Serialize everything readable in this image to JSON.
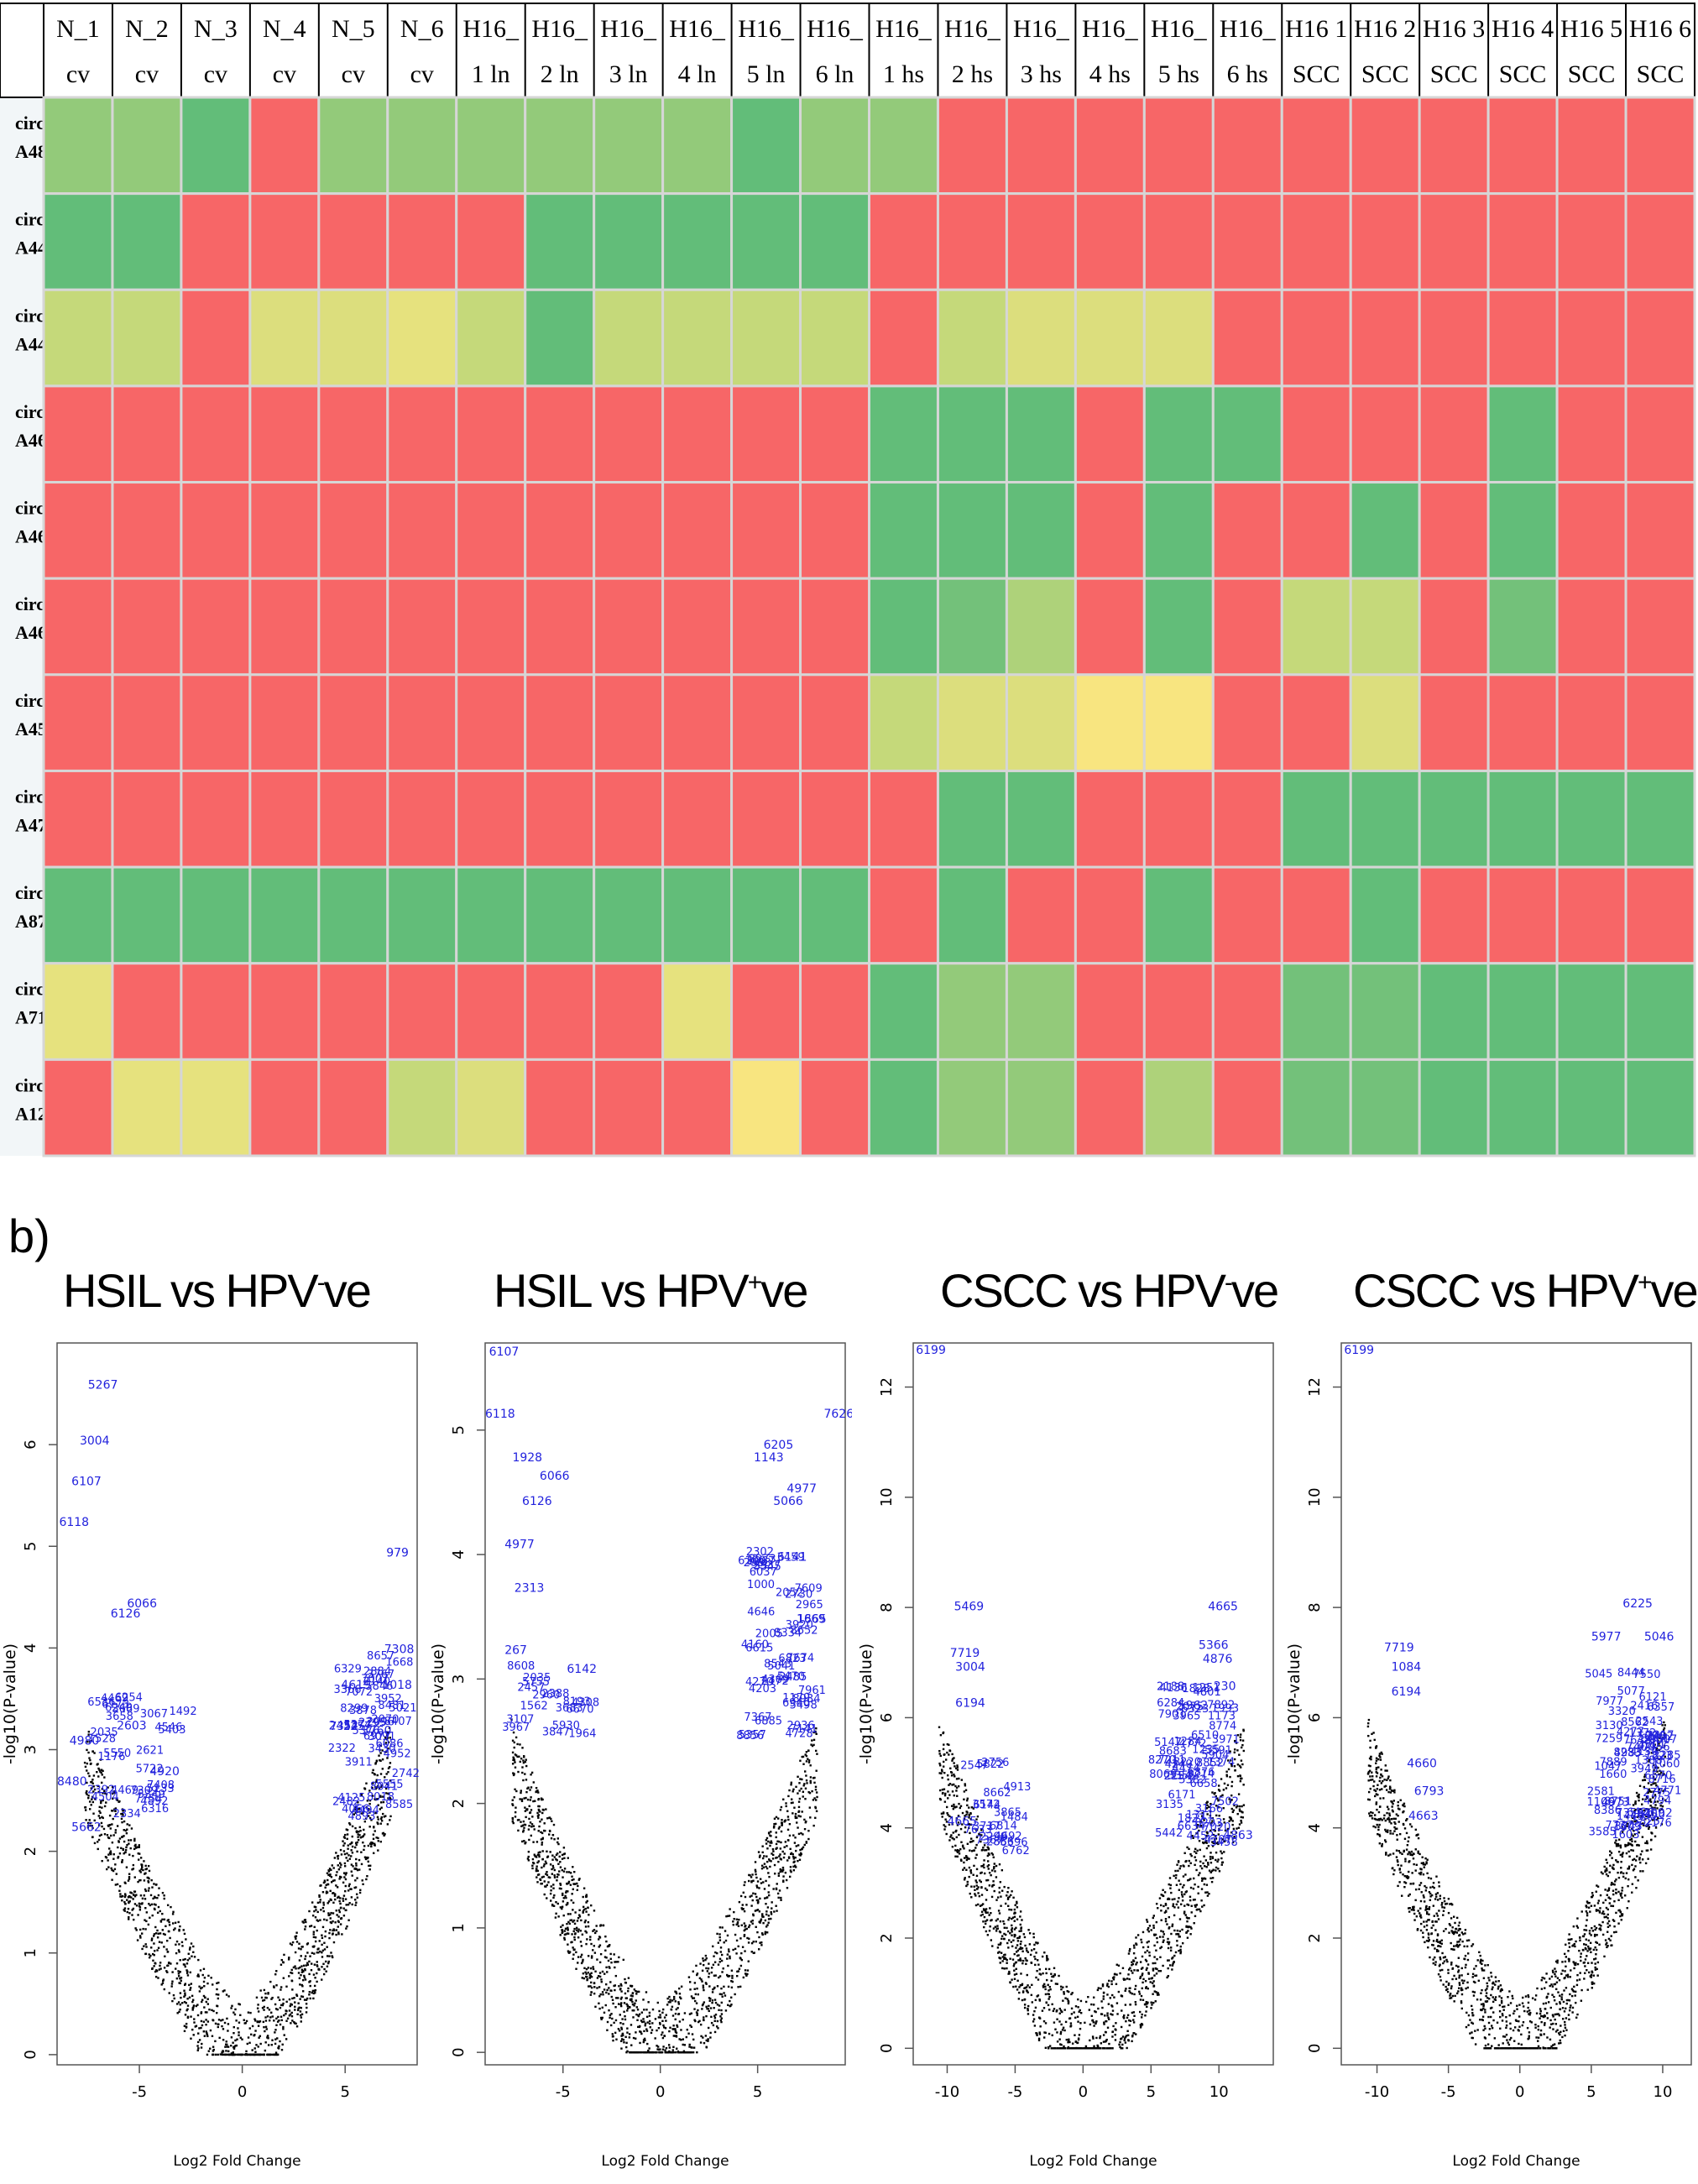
{
  "panel_a_label": "a)",
  "panel_b_label": "b)",
  "chart_data": [
    {
      "type": "heatmap",
      "columns": [
        [
          "N_1",
          "cv"
        ],
        [
          "N_2",
          "cv"
        ],
        [
          "N_3",
          "cv"
        ],
        [
          "N_4",
          "cv"
        ],
        [
          "N_5",
          "cv"
        ],
        [
          "N_6",
          "cv"
        ],
        [
          "H16_",
          "1 ln"
        ],
        [
          "H16_",
          "2 ln"
        ],
        [
          "H16_",
          "3 ln"
        ],
        [
          "H16_",
          "4 ln"
        ],
        [
          "H16_",
          "5 ln"
        ],
        [
          "H16_",
          "6 ln"
        ],
        [
          "H16_",
          "1 hs"
        ],
        [
          "H16_",
          "2 hs"
        ],
        [
          "H16_",
          "3 hs"
        ],
        [
          "H16_",
          "4 hs"
        ],
        [
          "H16_",
          "5 hs"
        ],
        [
          "H16_",
          "6 hs"
        ],
        [
          "H16 1",
          "SCC"
        ],
        [
          "H16 2",
          "SCC"
        ],
        [
          "H16 3",
          "SCC"
        ],
        [
          "H16 4",
          "SCC"
        ],
        [
          "H16 5",
          "SCC"
        ],
        [
          "H16 6",
          "SCC"
        ]
      ],
      "rows": [
        [
          "circRN",
          "A4806"
        ],
        [
          "circRN",
          "A4400"
        ],
        [
          "circRN",
          "A4402"
        ],
        [
          "circRN",
          "A46029"
        ],
        [
          "circRN",
          "A46229"
        ],
        [
          "circRN",
          "A46342"
        ],
        [
          "circRN",
          "A45436"
        ],
        [
          "circRN",
          "A47461"
        ],
        [
          "circRN",
          "A873"
        ],
        [
          "circRN",
          "A7194"
        ],
        [
          "circRN",
          "A12542"
        ]
      ],
      "palette": {
        "R": "#f76667",
        "G": "#62bd79",
        "g": "#73c17a",
        "L": "#93ca7a",
        "M": "#aed27a",
        "V": "#c5d97a",
        "Y": "#dcde7d",
        "P": "#e6e27e",
        "W": "#f8e580"
      },
      "cells": [
        "LLGRLLLLLLGLLRRRRRRRRRRR",
        "GGRRRRRGGGGGRRRRRRRRRRRR",
        "VVRYYPVGVVVVRVYYYRRRRRRR",
        "RRRRRRRRRRRRGGGRGGRRRGRR",
        "RRRRRRRRRRRRGGGRGRRGRGRR",
        "RRRRRRRRRRRRGgMRGRVVRgRR",
        "RRRRRRRRRRRRVYYWWRRYRRRR",
        "RRRRRRRRRRRRRGGRRRGGGGGG",
        "GGGGGGGGGGGGRGRRGRRGRRRR",
        "PRRRRRRRRPRRGLLRRRggGGGG",
        "RPPRRVYRRRWRGLLRMRggGGGG"
      ]
    },
    {
      "type": "scatter",
      "title_main": "HSIL vs HPV",
      "title_sup": "-",
      "title_tail": "ve",
      "xlabel": "Log2 Fold Change",
      "ylabel": "-log10(P-value)",
      "xlim": [
        -9,
        8.5
      ],
      "ylim": [
        -0.1,
        7
      ],
      "xticks": [
        -5,
        0,
        5
      ],
      "yticks": [
        0,
        1,
        2,
        3,
        4,
        5,
        6
      ],
      "point_color": "#000000",
      "label_color": "#2222dd",
      "labels": [
        {
          "t": "5267",
          "x": -7.5,
          "y": 6.55
        },
        {
          "t": "3004",
          "x": -7.9,
          "y": 6.0
        },
        {
          "t": "6107",
          "x": -8.3,
          "y": 5.6
        },
        {
          "t": "6118",
          "x": -8.9,
          "y": 5.2
        },
        {
          "t": "6066",
          "x": -5.6,
          "y": 4.4
        },
        {
          "t": "6126",
          "x": -6.4,
          "y": 4.3
        },
        {
          "t": "979",
          "x": 7.0,
          "y": 4.9
        },
        {
          "t": "2603",
          "x": -6.1,
          "y": 3.2
        },
        {
          "t": "4980",
          "x": -8.4,
          "y": 3.05
        },
        {
          "t": "8480",
          "x": -9.0,
          "y": 2.65
        },
        {
          "t": "5662",
          "x": -8.3,
          "y": 2.2
        },
        {
          "t": "4920",
          "x": -4.5,
          "y": 2.75
        },
        {
          "t": "2452",
          "x": 4.2,
          "y": 3.2
        },
        {
          "t": "1018",
          "x": 6.8,
          "y": 3.6
        },
        {
          "t": "7308",
          "x": 6.9,
          "y": 3.95
        },
        {
          "t": "4619",
          "x": 4.8,
          "y": 3.6
        },
        {
          "t": "3760",
          "x": 5.8,
          "y": 3.15
        }
      ],
      "label_clusters": [
        {
          "x": [
            -7.8,
            -3.5
          ],
          "y": [
            2.3,
            3.5
          ],
          "n": 28
        },
        {
          "x": [
            4.0,
            7.3
          ],
          "y": [
            2.3,
            4.0
          ],
          "n": 40
        }
      ]
    },
    {
      "type": "scatter",
      "title_main": "HSIL vs HPV",
      "title_sup": "+",
      "title_tail": "ve",
      "xlabel": "Log2 Fold Change",
      "ylabel": "-log10(P-value)",
      "xlim": [
        -9,
        9.5
      ],
      "ylim": [
        -0.1,
        5.7
      ],
      "xticks": [
        -5,
        0,
        5
      ],
      "yticks": [
        0,
        1,
        2,
        3,
        4,
        5
      ],
      "point_color": "#000000",
      "label_color": "#2222dd",
      "labels": [
        {
          "t": "6107",
          "x": -8.8,
          "y": 5.6
        },
        {
          "t": "6118",
          "x": -9.0,
          "y": 5.1
        },
        {
          "t": "7626",
          "x": 8.4,
          "y": 5.1
        },
        {
          "t": "1928",
          "x": -7.6,
          "y": 4.75
        },
        {
          "t": "6066",
          "x": -6.2,
          "y": 4.6
        },
        {
          "t": "6126",
          "x": -7.1,
          "y": 4.4
        },
        {
          "t": "4977",
          "x": -8.0,
          "y": 4.05
        },
        {
          "t": "2313",
          "x": -7.5,
          "y": 3.7
        },
        {
          "t": "6205",
          "x": 5.3,
          "y": 4.85
        },
        {
          "t": "1143",
          "x": 4.8,
          "y": 4.75
        },
        {
          "t": "5066",
          "x": 5.8,
          "y": 4.4
        },
        {
          "t": "4977",
          "x": 6.5,
          "y": 4.5
        },
        {
          "t": "6142",
          "x": -4.8,
          "y": 3.05
        },
        {
          "t": "6141",
          "x": 6.0,
          "y": 3.95
        },
        {
          "t": "1665",
          "x": 7.0,
          "y": 3.45
        },
        {
          "t": "267",
          "x": -8.0,
          "y": 3.2
        }
      ],
      "label_clusters": [
        {
          "x": [
            -8.2,
            -4.4
          ],
          "y": [
            2.4,
            3.1
          ],
          "n": 16
        },
        {
          "x": [
            3.9,
            7.2
          ],
          "y": [
            2.4,
            4.0
          ],
          "n": 44
        }
      ]
    },
    {
      "type": "scatter",
      "title_main": "CSCC vs HPV",
      "title_sup": "-",
      "title_tail": "ve",
      "xlabel": "Log2 Fold Change",
      "ylabel": "-log10(P-value)",
      "xlim": [
        -12.5,
        14
      ],
      "ylim": [
        -0.3,
        12.8
      ],
      "xticks": [
        -10,
        -5,
        0,
        5,
        10
      ],
      "yticks": [
        0,
        2,
        4,
        6,
        8,
        10,
        12
      ],
      "point_color": "#000000",
      "label_color": "#2222dd",
      "labels": [
        {
          "t": "6199",
          "x": -12.3,
          "y": 12.6
        },
        {
          "t": "5469",
          "x": -9.5,
          "y": 7.95
        },
        {
          "t": "7719",
          "x": -9.8,
          "y": 7.1
        },
        {
          "t": "3004",
          "x": -9.4,
          "y": 6.85
        },
        {
          "t": "6194",
          "x": -9.4,
          "y": 6.2
        },
        {
          "t": "4665",
          "x": -10.0,
          "y": 4.05
        },
        {
          "t": "4665",
          "x": 9.2,
          "y": 7.95
        },
        {
          "t": "5366",
          "x": 8.5,
          "y": 7.25
        },
        {
          "t": "4876",
          "x": 8.8,
          "y": 7.0
        },
        {
          "t": "230",
          "x": 9.6,
          "y": 6.5
        },
        {
          "t": "5962",
          "x": 7.0,
          "y": 6.15
        },
        {
          "t": "4863",
          "x": 10.3,
          "y": 3.8
        }
      ],
      "label_clusters": [
        {
          "x": [
            -9.2,
            -5.5
          ],
          "y": [
            3.4,
            5.2
          ],
          "n": 18
        },
        {
          "x": [
            4.6,
            9.6
          ],
          "y": [
            3.6,
            6.6
          ],
          "n": 50
        }
      ]
    },
    {
      "type": "scatter",
      "title_main": "CSCC vs HPV",
      "title_sup": "+",
      "title_tail": "ve",
      "xlabel": "Log2 Fold Change",
      "ylabel": "-log10(P-value)",
      "xlim": [
        -12.5,
        12
      ],
      "ylim": [
        -0.3,
        12.8
      ],
      "xticks": [
        -10,
        -5,
        0,
        5,
        10
      ],
      "yticks": [
        0,
        2,
        4,
        6,
        8,
        10,
        12
      ],
      "point_color": "#000000",
      "label_color": "#2222dd",
      "labels": [
        {
          "t": "6199",
          "x": -12.3,
          "y": 12.6
        },
        {
          "t": "7719",
          "x": -9.5,
          "y": 7.2
        },
        {
          "t": "1084",
          "x": -9.0,
          "y": 6.85
        },
        {
          "t": "6194",
          "x": -9.0,
          "y": 6.4
        },
        {
          "t": "4660",
          "x": -7.9,
          "y": 5.1
        },
        {
          "t": "6793",
          "x": -7.4,
          "y": 4.6
        },
        {
          "t": "4663",
          "x": -7.8,
          "y": 4.15
        },
        {
          "t": "6225",
          "x": 7.2,
          "y": 8.0
        },
        {
          "t": "5977",
          "x": 5.0,
          "y": 7.4
        },
        {
          "t": "7404",
          "x": 7.4,
          "y": 5.4
        },
        {
          "t": "4092",
          "x": 8.6,
          "y": 4.2
        },
        {
          "t": "5046",
          "x": 8.7,
          "y": 7.4
        }
      ],
      "label_clusters": [
        {
          "x": [
            4.4,
            9.4
          ],
          "y": [
            3.8,
            6.8
          ],
          "n": 55
        }
      ]
    }
  ]
}
